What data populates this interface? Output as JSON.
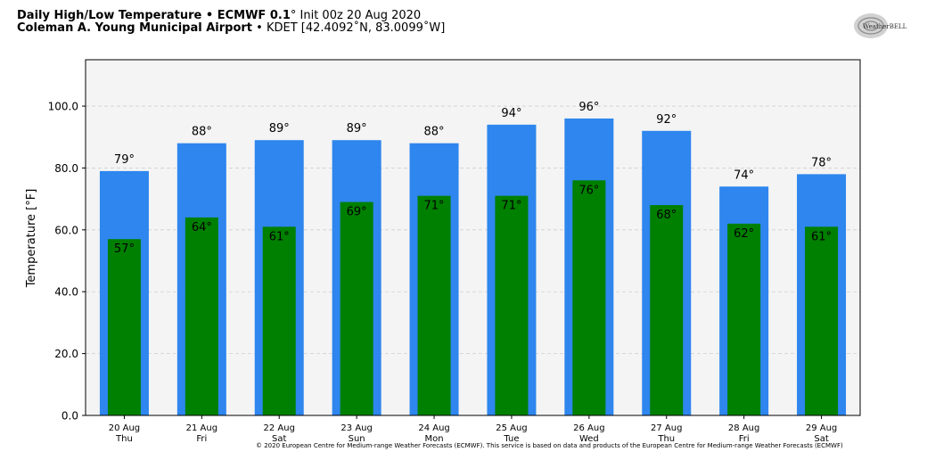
{
  "header": {
    "title_bold": "Daily High/Low Temperature • ECMWF 0.1",
    "title_deg": "°",
    "title_rest": " Init 00z 20 Aug 2020",
    "location_bold": "Coleman A. Young Municipal Airport",
    "location_rest": " • KDET [42.4092˚N, 83.0099˚W]"
  },
  "logo": {
    "text": "WeatherBELL"
  },
  "credit": "© 2020 European Centre for Medium-range Weather Forecasts (ECMWF). This service is based on data and products of the European Centre for Medium-range Weather Forecasts (ECMWF)",
  "colors": {
    "high": "#2e86ee",
    "low": "#008000",
    "plot_bg": "#f4f4f4"
  },
  "chart_data": {
    "type": "bar",
    "title": "Daily High/Low Temperature • ECMWF 0.1˚ Init 00z 20 Aug 2020",
    "xlabel": "",
    "ylabel": "Temperature [°F]",
    "ylim": [
      0,
      115
    ],
    "yticks": [
      "0.0",
      "20.0",
      "40.0",
      "60.0",
      "80.0",
      "100.0"
    ],
    "grid": true,
    "categories": [
      "20 Aug\nThu",
      "21 Aug\nFri",
      "22 Aug\nSat",
      "23 Aug\nSun",
      "24 Aug\nMon",
      "25 Aug\nTue",
      "26 Aug\nWed",
      "27 Aug\nThu",
      "28 Aug\nFri",
      "29 Aug\nSat"
    ],
    "series": [
      {
        "values": [
          79,
          88,
          89,
          89,
          88,
          94,
          96,
          92,
          74,
          78
        ]
      },
      {
        "values": [
          57,
          64,
          61,
          69,
          71,
          71,
          76,
          68,
          62,
          61
        ]
      }
    ]
  }
}
